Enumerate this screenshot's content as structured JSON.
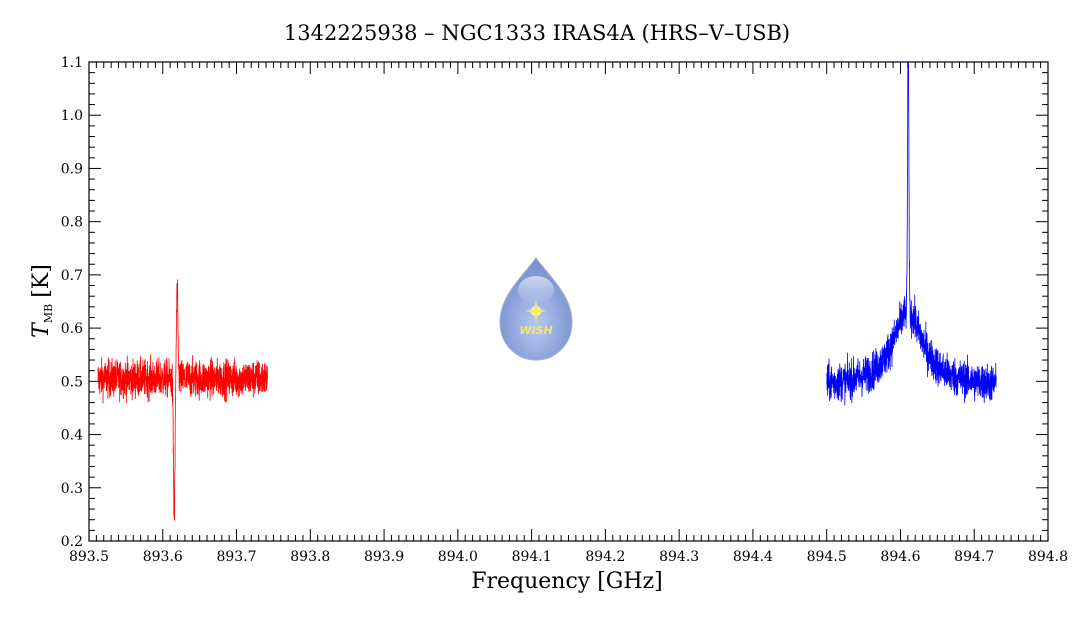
{
  "chart_data": {
    "type": "line",
    "title": "1342225938 – NGC1333 IRAS4A (HRS–V–USB)",
    "xlabel": "Frequency [GHz]",
    "ylabel_main": "T",
    "ylabel_sub": "MB",
    "ylabel_unit": "[K]",
    "xlim": [
      893.5,
      894.8
    ],
    "ylim": [
      0.2,
      1.1
    ],
    "x_ticks": [
      "893.5",
      "893.6",
      "893.7",
      "893.8",
      "893.9",
      "894.0",
      "894.1",
      "894.2",
      "894.3",
      "894.4",
      "894.5",
      "894.6",
      "894.7",
      "894.8"
    ],
    "y_ticks": [
      "0.2",
      "0.3",
      "0.4",
      "0.5",
      "0.6",
      "0.7",
      "0.8",
      "0.9",
      "1.0",
      "1.1"
    ],
    "grid": false,
    "logo_text": "WISH",
    "series": [
      {
        "color": "#ff0000",
        "x_range": [
          893.512,
          893.742
        ],
        "baseline": 0.505,
        "noise": 0.035,
        "features": [
          {
            "x": 893.6155,
            "y": 0.24,
            "width": 0.0015
          },
          {
            "x": 893.6195,
            "y": 0.665,
            "width": 0.0015
          }
        ]
      },
      {
        "color": "#0000ff",
        "x_range": [
          894.5,
          894.73
        ],
        "baseline": 0.49,
        "noise": 0.035,
        "broad_component": {
          "x": 894.61,
          "amp": 0.14,
          "width": 0.025
        },
        "features": [
          {
            "x": 894.6105,
            "y": 1.02,
            "width": 0.0012
          }
        ]
      }
    ]
  }
}
